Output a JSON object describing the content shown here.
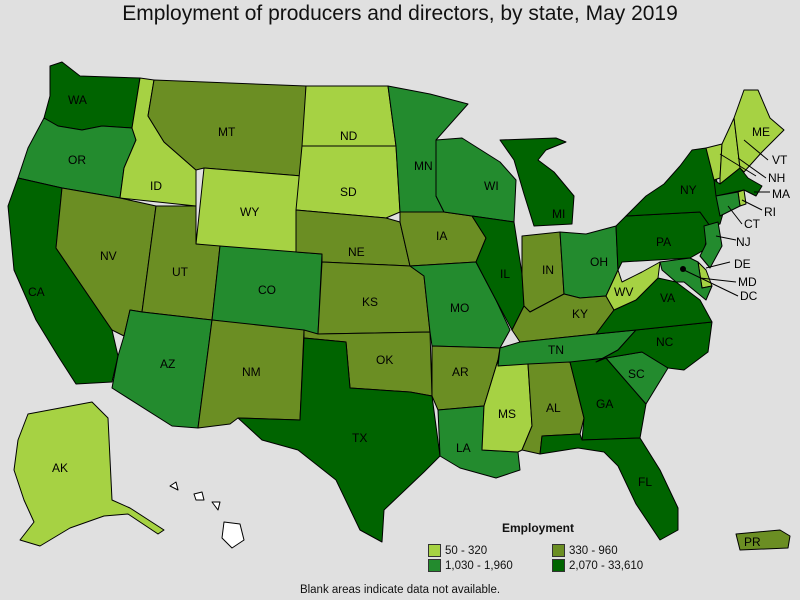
{
  "title": "Employment of producers and directors, by state, May 2019",
  "legend": {
    "title": "Employment",
    "items": [
      {
        "label": "50 - 320",
        "color": "#a6d243"
      },
      {
        "label": "330 - 960",
        "color": "#6b8e23"
      },
      {
        "label": "1,030 - 1,960",
        "color": "#238b2e"
      },
      {
        "label": "2,070 - 33,610",
        "color": "#006400"
      }
    ]
  },
  "footnote": "Blank areas indicate data not available.",
  "states": [
    {
      "abbr": "WA",
      "bin": 3
    },
    {
      "abbr": "OR",
      "bin": 2
    },
    {
      "abbr": "CA",
      "bin": 3
    },
    {
      "abbr": "ID",
      "bin": 0
    },
    {
      "abbr": "NV",
      "bin": 1
    },
    {
      "abbr": "MT",
      "bin": 1
    },
    {
      "abbr": "WY",
      "bin": 0
    },
    {
      "abbr": "UT",
      "bin": 1
    },
    {
      "abbr": "AZ",
      "bin": 2
    },
    {
      "abbr": "CO",
      "bin": 2
    },
    {
      "abbr": "NM",
      "bin": 1
    },
    {
      "abbr": "ND",
      "bin": 0
    },
    {
      "abbr": "SD",
      "bin": 0
    },
    {
      "abbr": "NE",
      "bin": 1
    },
    {
      "abbr": "KS",
      "bin": 1
    },
    {
      "abbr": "OK",
      "bin": 1
    },
    {
      "abbr": "TX",
      "bin": 3
    },
    {
      "abbr": "MN",
      "bin": 2
    },
    {
      "abbr": "IA",
      "bin": 1
    },
    {
      "abbr": "MO",
      "bin": 2
    },
    {
      "abbr": "AR",
      "bin": 1
    },
    {
      "abbr": "LA",
      "bin": 2
    },
    {
      "abbr": "WI",
      "bin": 2
    },
    {
      "abbr": "IL",
      "bin": 3
    },
    {
      "abbr": "MI",
      "bin": 3
    },
    {
      "abbr": "IN",
      "bin": 1
    },
    {
      "abbr": "OH",
      "bin": 2
    },
    {
      "abbr": "KY",
      "bin": 1
    },
    {
      "abbr": "TN",
      "bin": 2
    },
    {
      "abbr": "MS",
      "bin": 0
    },
    {
      "abbr": "AL",
      "bin": 1
    },
    {
      "abbr": "GA",
      "bin": 3
    },
    {
      "abbr": "FL",
      "bin": 3
    },
    {
      "abbr": "SC",
      "bin": 2
    },
    {
      "abbr": "NC",
      "bin": 3
    },
    {
      "abbr": "VA",
      "bin": 3
    },
    {
      "abbr": "WV",
      "bin": 0
    },
    {
      "abbr": "PA",
      "bin": 3
    },
    {
      "abbr": "NY",
      "bin": 3
    },
    {
      "abbr": "VT",
      "bin": 0
    },
    {
      "abbr": "NH",
      "bin": 0
    },
    {
      "abbr": "ME",
      "bin": 0
    },
    {
      "abbr": "MA",
      "bin": 3
    },
    {
      "abbr": "RI",
      "bin": 0
    },
    {
      "abbr": "CT",
      "bin": 2
    },
    {
      "abbr": "NJ",
      "bin": 2
    },
    {
      "abbr": "DE",
      "bin": 0
    },
    {
      "abbr": "MD",
      "bin": 2
    },
    {
      "abbr": "DC",
      "bin": 3
    },
    {
      "abbr": "AK",
      "bin": 0
    },
    {
      "abbr": "HI",
      "bin": null
    },
    {
      "abbr": "PR",
      "bin": 1
    }
  ]
}
